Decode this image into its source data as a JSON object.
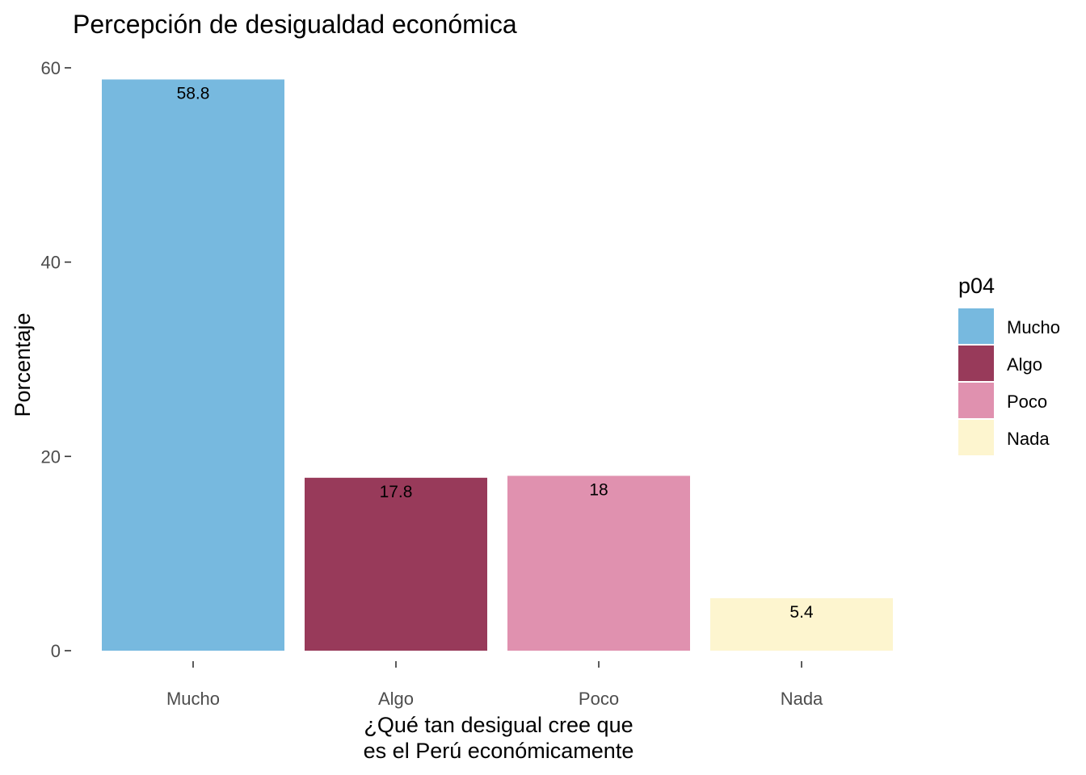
{
  "chart_data": {
    "type": "bar",
    "title": "Percepción de desigualdad económica",
    "xlabel_lines": [
      "¿Qué tan desigual cree que",
      "es el Perú económicamente"
    ],
    "ylabel": "Porcentaje",
    "categories": [
      "Mucho",
      "Algo",
      "Poco",
      "Nada"
    ],
    "values": [
      58.8,
      17.8,
      18,
      5.4
    ],
    "value_labels": [
      "58.8",
      "17.8",
      "18",
      "5.4"
    ],
    "colors": [
      "#77B9DF",
      "#983A5A",
      "#E091AF",
      "#FDF5CF"
    ],
    "ylim": [
      0,
      60
    ],
    "yticks": [
      0,
      20,
      40,
      60
    ],
    "ytick_labels": [
      "0",
      "20",
      "40",
      "60"
    ],
    "grid": false,
    "legend": {
      "title": "p04",
      "position": "right",
      "entries": [
        "Mucho",
        "Algo",
        "Poco",
        "Nada"
      ]
    }
  }
}
